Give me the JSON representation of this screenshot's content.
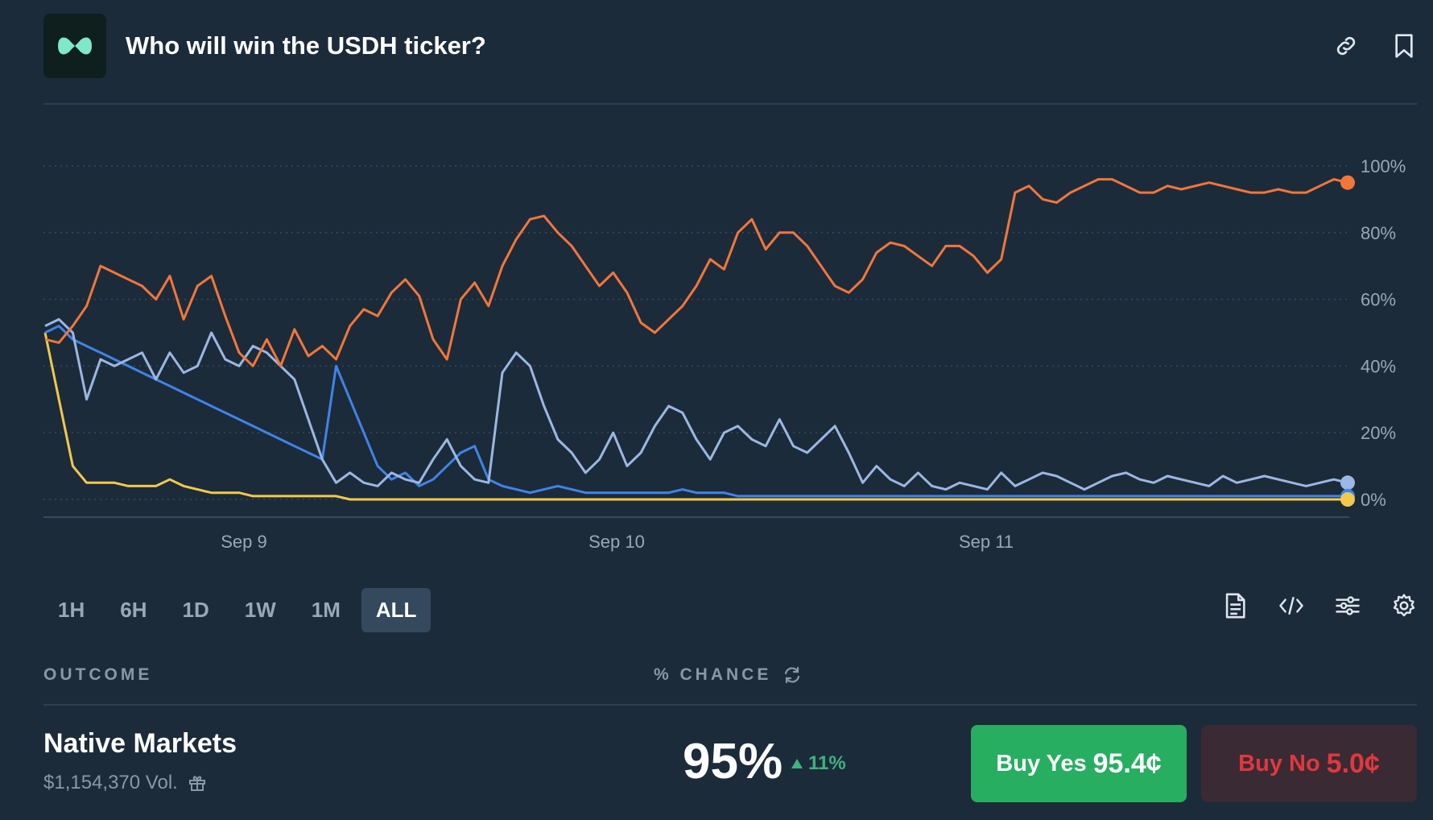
{
  "header": {
    "title": "Who will win the USDH ticker?"
  },
  "chart_data": {
    "type": "line",
    "x_ticks": [
      "Sep 9",
      "Sep 10",
      "Sep 11"
    ],
    "y_ticks": [
      "100%",
      "80%",
      "60%",
      "40%",
      "20%",
      "0%"
    ],
    "ylim": [
      0,
      100
    ],
    "grid": true,
    "series": [
      {
        "color": "#f2763a",
        "values": [
          48,
          47,
          52,
          58,
          70,
          68,
          66,
          64,
          60,
          67,
          54,
          64,
          67,
          55,
          44,
          40,
          48,
          40,
          51,
          43,
          46,
          42,
          52,
          57,
          55,
          62,
          66,
          61,
          48,
          42,
          60,
          65,
          58,
          70,
          78,
          84,
          85,
          80,
          76,
          70,
          64,
          68,
          62,
          53,
          50,
          54,
          58,
          64,
          72,
          69,
          80,
          84,
          75,
          80,
          80,
          76,
          70,
          64,
          62,
          66,
          74,
          77,
          76,
          73,
          70,
          76,
          76,
          73,
          68,
          72,
          92,
          94,
          90,
          89,
          92,
          94,
          96,
          96,
          94,
          92,
          92,
          94,
          93,
          94,
          95,
          94,
          93,
          92,
          92,
          93,
          92,
          92,
          94,
          96,
          95
        ]
      },
      {
        "color": "#9bb7e3",
        "values": [
          52,
          54,
          50,
          30,
          42,
          40,
          42,
          44,
          36,
          44,
          38,
          40,
          50,
          42,
          40,
          46,
          44,
          40,
          36,
          24,
          12,
          5,
          8,
          5,
          4,
          8,
          6,
          5,
          12,
          18,
          10,
          6,
          5,
          38,
          44,
          40,
          28,
          18,
          14,
          8,
          12,
          20,
          10,
          14,
          22,
          28,
          26,
          18,
          12,
          20,
          22,
          18,
          16,
          24,
          16,
          14,
          18,
          22,
          14,
          5,
          10,
          6,
          4,
          8,
          4,
          3,
          5,
          4,
          3,
          8,
          4,
          6,
          8,
          7,
          5,
          3,
          5,
          7,
          8,
          6,
          5,
          7,
          6,
          5,
          4,
          7,
          5,
          6,
          7,
          6,
          5,
          4,
          5,
          6,
          5
        ]
      },
      {
        "color": "#3f84e8",
        "values": [
          50,
          52,
          48,
          46,
          44,
          42,
          40,
          38,
          36,
          34,
          32,
          30,
          28,
          26,
          24,
          22,
          20,
          18,
          16,
          14,
          12,
          40,
          30,
          20,
          10,
          6,
          8,
          4,
          6,
          10,
          14,
          16,
          6,
          4,
          3,
          2,
          3,
          4,
          3,
          2,
          2,
          2,
          2,
          2,
          2,
          2,
          3,
          2,
          2,
          2,
          1,
          1,
          1,
          1,
          1,
          1,
          1,
          1,
          1,
          1,
          1,
          1,
          1,
          1,
          1,
          1,
          1,
          1,
          1,
          1,
          1,
          1,
          1,
          1,
          1,
          1,
          1,
          1,
          1,
          1,
          1,
          1,
          1,
          1,
          1,
          1,
          1,
          1,
          1,
          1,
          1,
          1,
          1,
          1,
          1
        ]
      },
      {
        "color": "#f2c94c",
        "values": [
          50,
          30,
          10,
          5,
          5,
          5,
          4,
          4,
          4,
          6,
          4,
          3,
          2,
          2,
          2,
          1,
          1,
          1,
          1,
          1,
          1,
          1,
          0,
          0,
          0,
          0,
          0,
          0,
          0,
          0,
          0,
          0,
          0,
          0,
          0,
          0,
          0,
          0,
          0,
          0,
          0,
          0,
          0,
          0,
          0,
          0,
          0,
          0,
          0,
          0,
          0,
          0,
          0,
          0,
          0,
          0,
          0,
          0,
          0,
          0,
          0,
          0,
          0,
          0,
          0,
          0,
          0,
          0,
          0,
          0,
          0,
          0,
          0,
          0,
          0,
          0,
          0,
          0,
          0,
          0,
          0,
          0,
          0,
          0,
          0,
          0,
          0,
          0,
          0,
          0,
          0,
          0,
          0,
          0,
          0
        ]
      }
    ]
  },
  "range_tabs": [
    "1H",
    "6H",
    "1D",
    "1W",
    "1M",
    "ALL"
  ],
  "active_range": "ALL",
  "table": {
    "col_outcome": "OUTCOME",
    "col_chance": "% CHANCE"
  },
  "outcome": {
    "name": "Native Markets",
    "volume": "$1,154,370 Vol.",
    "chance": "95%",
    "delta": "11%",
    "yes_label": "Buy Yes",
    "yes_price": "95.4¢",
    "no_label": "Buy No",
    "no_price": "5.0¢"
  },
  "icons": {
    "link": "link-icon",
    "bookmark": "bookmark-icon",
    "document": "document-icon",
    "embed": "code-icon",
    "filters": "sliders-icon",
    "settings": "gear-icon",
    "refresh": "refresh-icon",
    "gift": "gift-icon"
  }
}
